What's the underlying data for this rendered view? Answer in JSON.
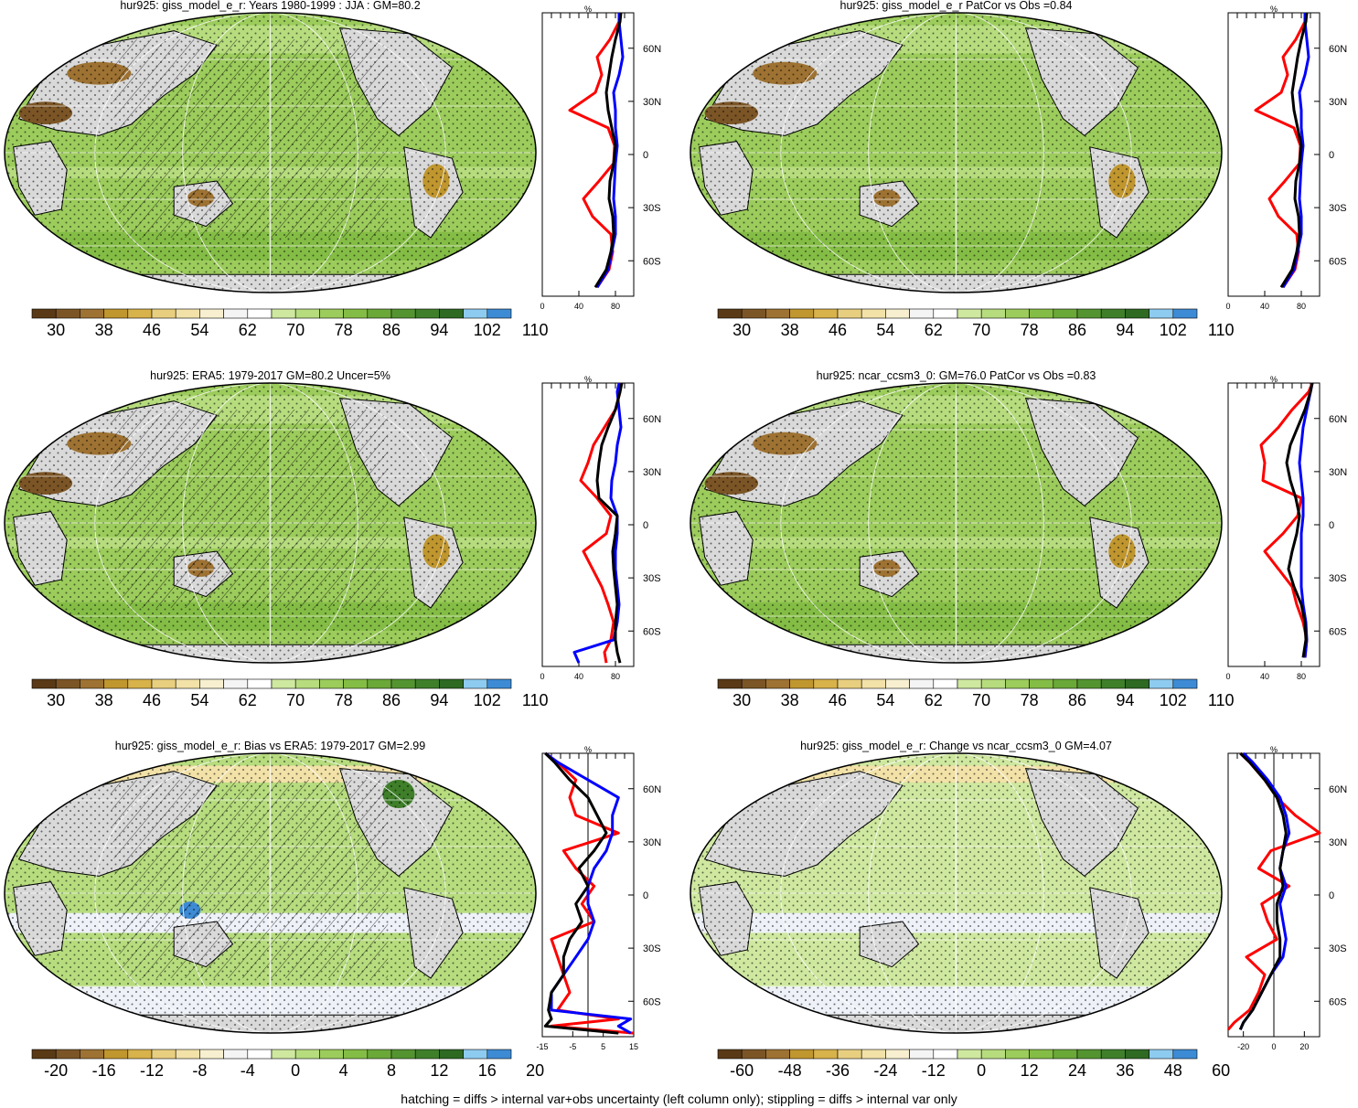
{
  "footer_note": "hatching = diffs > internal var+obs uncertainty (left column only); stippling = diffs > internal var only",
  "colors": {
    "profile_red": "#ff0000",
    "profile_blue": "#0000ff",
    "profile_black": "#000000",
    "land_gray": "#d9d9d9",
    "ocean_fill": "#9ccc5c",
    "cb_abs": [
      "#5a3a16",
      "#7c5526",
      "#9e7232",
      "#c0962e",
      "#d8b24a",
      "#e8cf80",
      "#f2e2a8",
      "#f7efcf",
      "#f4f4f4",
      "#ffffff",
      "#cfe8a0",
      "#b6dc7e",
      "#9ccc5c",
      "#84bd45",
      "#6aa838",
      "#549430",
      "#3f7f2a",
      "#2e6a22",
      "#8ecbf0",
      "#3d8bd4"
    ],
    "cb_diff": [
      "#5a3a16",
      "#7c5526",
      "#9e7232",
      "#c0962e",
      "#d8b24a",
      "#e8cf80",
      "#f2e2a8",
      "#f7efcf",
      "#f4f4f4",
      "#ffffff",
      "#cfe8a0",
      "#b6dc7e",
      "#9ccc5c",
      "#84bd45",
      "#6aa838",
      "#549430",
      "#3f7f2a",
      "#2e6a22",
      "#8ecbf0",
      "#3d8bd4"
    ]
  },
  "panels": [
    {
      "title": "hur925: giss_model_e_r: Years 1980-1999 : JJA : GM=80.2",
      "colorbar_labels": [
        "30",
        "38",
        "46",
        "54",
        "62",
        "70",
        "78",
        "86",
        "94",
        "102",
        "110"
      ],
      "chart_data": {
        "type": "line",
        "orientation": "zonal-mean profile",
        "y_axis": "latitude",
        "y_ticks": [
          "60N",
          "30N",
          "0",
          "30S",
          "60S"
        ],
        "x_ticks": [
          "0",
          "40",
          "80"
        ],
        "xlim": [
          0,
          100
        ],
        "ylim": [
          -80,
          80
        ],
        "unit": "%",
        "latitudes": [
          -75,
          -65,
          -55,
          -45,
          -35,
          -25,
          -15,
          -5,
          5,
          15,
          25,
          35,
          45,
          55,
          65,
          75,
          80
        ],
        "series": [
          {
            "color": "#000000",
            "values": [
              58,
              70,
              75,
              78,
              77,
              73,
              74,
              78,
              80,
              76,
              72,
              70,
              73,
              76,
              80,
              85,
              86
            ]
          },
          {
            "color": "#0000ff",
            "values": [
              60,
              72,
              76,
              80,
              80,
              78,
              79,
              80,
              82,
              80,
              80,
              78,
              84,
              88,
              86,
              84,
              84
            ]
          },
          {
            "color": "#ff0000",
            "values": [
              60,
              73,
              77,
              75,
              55,
              45,
              62,
              78,
              79,
              72,
              30,
              58,
              65,
              60,
              74,
              84,
              85
            ]
          }
        ]
      }
    },
    {
      "title": "hur925: giss_model_e_r PatCor vs Obs =0.84",
      "colorbar_labels": [
        "30",
        "38",
        "46",
        "54",
        "62",
        "70",
        "78",
        "86",
        "94",
        "102",
        "110"
      ],
      "chart_data": {
        "type": "line",
        "orientation": "zonal-mean profile",
        "y_axis": "latitude",
        "y_ticks": [
          "60N",
          "30N",
          "0",
          "30S",
          "60S"
        ],
        "x_ticks": [
          "0",
          "40",
          "80"
        ],
        "xlim": [
          0,
          100
        ],
        "ylim": [
          -80,
          80
        ],
        "unit": "%",
        "latitudes": [
          -75,
          -65,
          -55,
          -45,
          -35,
          -25,
          -15,
          -5,
          5,
          15,
          25,
          35,
          45,
          55,
          65,
          75,
          80
        ],
        "series": [
          {
            "color": "#000000",
            "values": [
              58,
              70,
              75,
              78,
              77,
              73,
              74,
              78,
              80,
              76,
              72,
              70,
              73,
              76,
              80,
              85,
              86
            ]
          },
          {
            "color": "#0000ff",
            "values": [
              60,
              72,
              76,
              80,
              80,
              78,
              79,
              80,
              82,
              80,
              80,
              78,
              84,
              88,
              86,
              84,
              84
            ]
          },
          {
            "color": "#ff0000",
            "values": [
              60,
              73,
              77,
              75,
              55,
              45,
              62,
              78,
              79,
              72,
              30,
              58,
              65,
              60,
              74,
              84,
              85
            ]
          }
        ]
      }
    },
    {
      "title": "hur925: ERA5: 1979-2017 GM=80.2 Uncer=5%",
      "colorbar_labels": [
        "30",
        "38",
        "46",
        "54",
        "62",
        "70",
        "78",
        "86",
        "94",
        "102",
        "110"
      ],
      "chart_data": {
        "type": "line",
        "orientation": "zonal-mean profile",
        "y_axis": "latitude",
        "y_ticks": [
          "60N",
          "30N",
          "0",
          "30S",
          "60S"
        ],
        "x_ticks": [
          "0",
          "40",
          "80"
        ],
        "xlim": [
          0,
          100
        ],
        "ylim": [
          -80,
          80
        ],
        "unit": "%",
        "latitudes": [
          -78,
          -72,
          -65,
          -55,
          -45,
          -35,
          -25,
          -15,
          -5,
          5,
          15,
          25,
          35,
          45,
          55,
          65,
          75,
          80
        ],
        "series": [
          {
            "color": "#000000",
            "values": [
              85,
              82,
              80,
              80,
              82,
              80,
              78,
              77,
              80,
              82,
              62,
              60,
              62,
              65,
              72,
              80,
              85,
              87
            ]
          },
          {
            "color": "#0000ff",
            "values": [
              40,
              35,
              78,
              82,
              84,
              82,
              80,
              80,
              82,
              82,
              75,
              76,
              80,
              82,
              86,
              84,
              82,
              84
            ]
          },
          {
            "color": "#ff0000",
            "values": [
              70,
              68,
              75,
              78,
              72,
              65,
              55,
              45,
              70,
              75,
              60,
              42,
              50,
              56,
              68,
              80,
              85,
              86
            ]
          }
        ]
      }
    },
    {
      "title": "hur925: ncar_ccsm3_0: GM=76.0 PatCor vs Obs =0.83",
      "colorbar_labels": [
        "30",
        "38",
        "46",
        "54",
        "62",
        "70",
        "78",
        "86",
        "94",
        "102",
        "110"
      ],
      "chart_data": {
        "type": "line",
        "orientation": "zonal-mean profile",
        "y_axis": "latitude",
        "y_ticks": [
          "60N",
          "30N",
          "0",
          "30S",
          "60S"
        ],
        "x_ticks": [
          "0",
          "40",
          "80"
        ],
        "xlim": [
          0,
          100
        ],
        "ylim": [
          -80,
          80
        ],
        "unit": "%",
        "latitudes": [
          -75,
          -65,
          -55,
          -45,
          -35,
          -25,
          -15,
          -5,
          5,
          15,
          25,
          35,
          45,
          55,
          65,
          75,
          80
        ],
        "series": [
          {
            "color": "#000000",
            "values": [
              82,
              85,
              84,
              80,
              72,
              66,
              70,
              75,
              78,
              74,
              68,
              64,
              68,
              76,
              84,
              90,
              92
            ]
          },
          {
            "color": "#0000ff",
            "values": [
              84,
              86,
              85,
              82,
              80,
              80,
              80,
              80,
              82,
              82,
              80,
              78,
              80,
              82,
              86,
              90,
              92
            ]
          },
          {
            "color": "#ff0000",
            "values": [
              84,
              86,
              82,
              75,
              70,
              55,
              40,
              60,
              76,
              80,
              38,
              40,
              36,
              55,
              70,
              88,
              92
            ]
          }
        ]
      }
    },
    {
      "title": "hur925: giss_model_e_r: Bias vs ERA5: 1979-2017 GM=2.99",
      "colorbar_labels": [
        "-20",
        "-16",
        "-12",
        "-8",
        "-4",
        "0",
        "4",
        "8",
        "12",
        "16",
        "20"
      ],
      "chart_data": {
        "type": "line",
        "orientation": "zonal-mean profile",
        "y_axis": "latitude",
        "y_ticks": [
          "60N",
          "30N",
          "0",
          "30S",
          "60S"
        ],
        "x_ticks": [
          "-15",
          "-5",
          "5",
          "15"
        ],
        "xlim": [
          -15,
          15
        ],
        "ylim": [
          -80,
          80
        ],
        "unit": "%",
        "latitudes": [
          -78,
          -74,
          -70,
          -65,
          -55,
          -45,
          -35,
          -25,
          -15,
          -5,
          5,
          15,
          25,
          35,
          45,
          55,
          65,
          75,
          80
        ],
        "series": [
          {
            "color": "#000000",
            "values": [
              10,
              -14,
              -12,
              -13,
              -12,
              -8,
              -8,
              -6,
              -2,
              -4,
              0,
              -3,
              2,
              6,
              3,
              0,
              -6,
              -11,
              -14
            ]
          },
          {
            "color": "#0000ff",
            "values": [
              14,
              10,
              14,
              -12,
              -12,
              -8,
              -4,
              0,
              2,
              0,
              0,
              2,
              6,
              8,
              8,
              10,
              0,
              -10,
              -14
            ]
          },
          {
            "color": "#ff0000",
            "values": [
              15,
              -12,
              10,
              -10,
              -6,
              -8,
              -10,
              -12,
              2,
              -2,
              2,
              -4,
              -8,
              10,
              -4,
              -6,
              -4,
              -10,
              -14
            ]
          }
        ]
      }
    },
    {
      "title": "hur925: giss_model_e_r: Change vs ncar_ccsm3_0 GM=4.07",
      "colorbar_labels": [
        "-60",
        "-48",
        "-36",
        "-24",
        "-12",
        "0",
        "12",
        "24",
        "36",
        "48",
        "60"
      ],
      "chart_data": {
        "type": "line",
        "orientation": "zonal-mean profile",
        "y_axis": "latitude",
        "y_ticks": [
          "60N",
          "30N",
          "0",
          "30S",
          "60S"
        ],
        "x_ticks": [
          "-20",
          "0",
          "20"
        ],
        "xlim": [
          -30,
          30
        ],
        "ylim": [
          -80,
          80
        ],
        "unit": "%",
        "latitudes": [
          -76,
          -72,
          -65,
          -55,
          -45,
          -35,
          -25,
          -15,
          -5,
          5,
          15,
          25,
          35,
          45,
          55,
          65,
          75,
          80
        ],
        "series": [
          {
            "color": "#000000",
            "values": [
              -22,
              -20,
              -14,
              -8,
              -2,
              4,
              4,
              2,
              2,
              6,
              4,
              6,
              8,
              6,
              2,
              -6,
              -16,
              -22
            ]
          },
          {
            "color": "#0000ff",
            "values": [
              -22,
              -20,
              -14,
              -8,
              -2,
              6,
              8,
              6,
              4,
              8,
              4,
              6,
              10,
              8,
              4,
              -4,
              -14,
              -20
            ]
          },
          {
            "color": "#ff0000",
            "values": [
              -30,
              -26,
              -16,
              -10,
              -6,
              -18,
              2,
              -4,
              -8,
              10,
              -10,
              -2,
              30,
              14,
              2,
              -6,
              -16,
              -22
            ]
          }
        ]
      }
    }
  ]
}
